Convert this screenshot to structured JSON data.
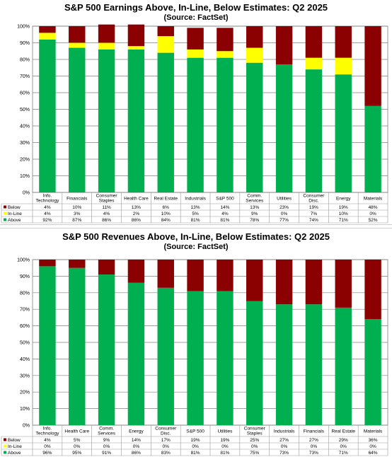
{
  "colors": {
    "below": "#8B0000",
    "inline": "#FFFF00",
    "above": "#00B050"
  },
  "chart_data": [
    {
      "type": "bar",
      "stacked": true,
      "title": "S&P 500 Earnings Above, In-Line, Below Estimates: Q2 2025",
      "subtitle": "(Source: FactSet)",
      "categories": [
        [
          "Info.",
          "Technology"
        ],
        [
          "Financials"
        ],
        [
          "Consumer",
          "Staples"
        ],
        [
          "Health Care"
        ],
        [
          "Real Estate"
        ],
        [
          "Industrials"
        ],
        [
          "S&P 500"
        ],
        [
          "Comm.",
          "Services"
        ],
        [
          "Utilities"
        ],
        [
          "Consumer",
          "Disc."
        ],
        [
          "Energy"
        ],
        [
          "Materials"
        ]
      ],
      "yticks": [
        "0%",
        "10%",
        "20%",
        "30%",
        "40%",
        "50%",
        "60%",
        "70%",
        "80%",
        "90%",
        "100%"
      ],
      "ylim": [
        0,
        100
      ],
      "series": [
        {
          "name": "Below",
          "key": "below",
          "values": [
            4,
            10,
            11,
            13,
            6,
            13,
            14,
            13,
            23,
            19,
            19,
            48
          ],
          "labels": [
            "4%",
            "10%",
            "11%",
            "13%",
            "6%",
            "13%",
            "14%",
            "13%",
            "23%",
            "19%",
            "19%",
            "48%"
          ]
        },
        {
          "name": "In-Line",
          "key": "inline",
          "values": [
            4,
            3,
            4,
            2,
            10,
            5,
            4,
            9,
            0,
            7,
            10,
            0
          ],
          "labels": [
            "4%",
            "3%",
            "4%",
            "2%",
            "10%",
            "5%",
            "4%",
            "9%",
            "0%",
            "7%",
            "10%",
            "0%"
          ]
        },
        {
          "name": "Above",
          "key": "above",
          "values": [
            92,
            87,
            86,
            86,
            84,
            81,
            81,
            78,
            77,
            74,
            71,
            52
          ],
          "labels": [
            "92%",
            "87%",
            "86%",
            "86%",
            "84%",
            "81%",
            "81%",
            "78%",
            "77%",
            "74%",
            "71%",
            "52%"
          ]
        }
      ],
      "grid": true,
      "legend": "data-table"
    },
    {
      "type": "bar",
      "stacked": true,
      "title": "S&P 500 Revenues Above, In-Line, Below Estimates: Q2 2025",
      "subtitle": "(Source: FactSet)",
      "categories": [
        [
          "Info.",
          "Technology"
        ],
        [
          "Health Care"
        ],
        [
          "Comm.",
          "Services"
        ],
        [
          "Energy"
        ],
        [
          "Consumer",
          "Disc."
        ],
        [
          "S&P 500"
        ],
        [
          "Utilities"
        ],
        [
          "Consumer",
          "Staples"
        ],
        [
          "Industrials"
        ],
        [
          "Financials"
        ],
        [
          "Real Estate"
        ],
        [
          "Materials"
        ]
      ],
      "yticks": [
        "0%",
        "10%",
        "20%",
        "30%",
        "40%",
        "50%",
        "60%",
        "70%",
        "80%",
        "90%",
        "100%"
      ],
      "ylim": [
        0,
        100
      ],
      "series": [
        {
          "name": "Below",
          "key": "below",
          "values": [
            4,
            5,
            9,
            14,
            17,
            19,
            19,
            25,
            27,
            27,
            29,
            36
          ],
          "labels": [
            "4%",
            "5%",
            "9%",
            "14%",
            "17%",
            "19%",
            "19%",
            "25%",
            "27%",
            "27%",
            "29%",
            "36%"
          ]
        },
        {
          "name": "In-Line",
          "key": "inline",
          "values": [
            0,
            0,
            0,
            0,
            0,
            0,
            0,
            0,
            0,
            0,
            0,
            0
          ],
          "labels": [
            "0%",
            "0%",
            "0%",
            "0%",
            "0%",
            "0%",
            "0%",
            "0%",
            "0%",
            "0%",
            "0%",
            "0%"
          ]
        },
        {
          "name": "Above",
          "key": "above",
          "values": [
            96,
            95,
            91,
            86,
            83,
            81,
            81,
            75,
            73,
            73,
            71,
            64
          ],
          "labels": [
            "96%",
            "95%",
            "91%",
            "86%",
            "83%",
            "81%",
            "81%",
            "75%",
            "73%",
            "73%",
            "71%",
            "64%"
          ]
        }
      ],
      "grid": true,
      "legend": "data-table"
    }
  ]
}
